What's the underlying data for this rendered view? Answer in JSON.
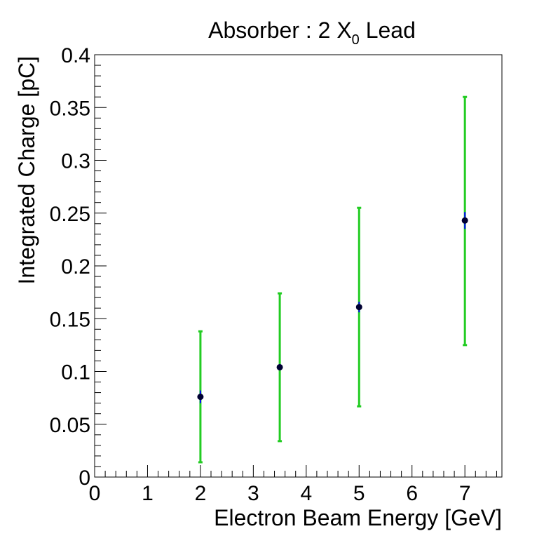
{
  "chart_data": {
    "type": "scatter",
    "title_main": "Absorber : 2 X",
    "title_sub": "0",
    "title_tail": " Lead",
    "xlabel": "Electron Beam Energy [GeV]",
    "ylabel": "Integrated Charge [pC]",
    "xlim": [
      0,
      7.7
    ],
    "ylim": [
      0,
      0.4
    ],
    "xticks": [
      "0",
      "1",
      "2",
      "3",
      "4",
      "5",
      "6",
      "7"
    ],
    "yticks": [
      "0",
      "0.05",
      "0.1",
      "0.15",
      "0.2",
      "0.25",
      "0.3",
      "0.35",
      "0.4"
    ],
    "grid": false,
    "points": [
      {
        "x": 2.0,
        "y": 0.076,
        "stat_err": 0.006,
        "sys_low": 0.014,
        "sys_high": 0.138
      },
      {
        "x": 3.5,
        "y": 0.104,
        "stat_err": 0.003,
        "sys_low": 0.034,
        "sys_high": 0.174
      },
      {
        "x": 5.0,
        "y": 0.161,
        "stat_err": 0.005,
        "sys_low": 0.067,
        "sys_high": 0.255
      },
      {
        "x": 7.0,
        "y": 0.243,
        "stat_err": 0.008,
        "sys_low": 0.125,
        "sys_high": 0.36
      }
    ],
    "colors": {
      "marker": "#000033",
      "stat_error": "#0000ff",
      "sys_error": "#22cc22",
      "frame": "#000000"
    }
  }
}
